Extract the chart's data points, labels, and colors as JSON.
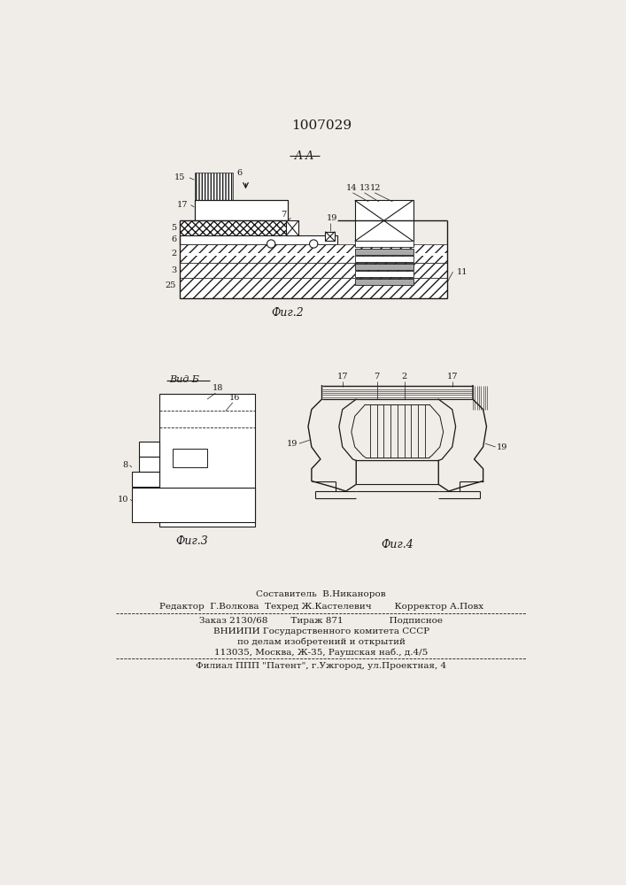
{
  "title_patent": "1007029",
  "bg_color": "#f0ede8",
  "line_color": "#1a1a1a",
  "fig2_label": "Фиг.2",
  "fig3_label": "Фиг.3",
  "fig4_label": "Фиг.4",
  "section_label": "A-A",
  "view_label": "Вид Б",
  "footer_line1": "Составитель  В.Никаноров",
  "footer_line2": "Редактор  Г.Волкова  Техред Ж.Кастелевич        Корректор А.Повх",
  "footer_line3": "Заказ 2130/68        Тираж 871                Подписное",
  "footer_line4": "ВНИИПИ Государственного комитета СССР",
  "footer_line5": "по делам изобретений и открытий",
  "footer_line6": "113035, Москва, Ж-35, Раушская наб., д.4/5",
  "footer_line7": "Филиал ППП \"Патент\", г.Ужгород, ул.Проектная, 4"
}
